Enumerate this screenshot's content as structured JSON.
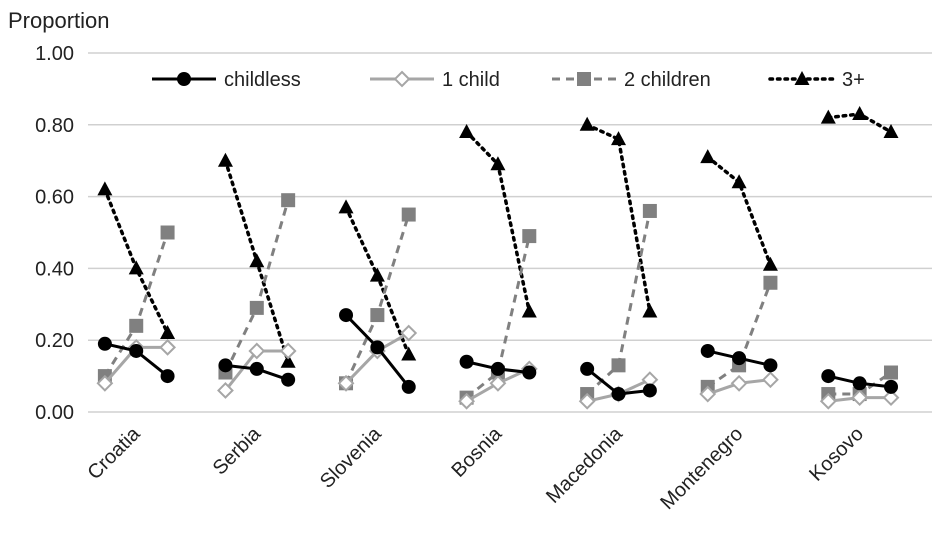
{
  "chart_data": {
    "type": "line",
    "ylabel": "Proportion",
    "ylim": [
      0,
      1
    ],
    "yticks": [
      "0.00",
      "0.20",
      "0.40",
      "0.60",
      "0.80",
      "1.00"
    ],
    "yticks_values": [
      0,
      0.2,
      0.4,
      0.6,
      0.8,
      1.0
    ],
    "grid": true,
    "legend_position": "top",
    "categories": [
      "Croatia",
      "Serbia",
      "Slovenia",
      "Bosnia",
      "Macedonia",
      "Montenegro",
      "Kosovo"
    ],
    "points_per_category": 3,
    "series": [
      {
        "name": "childless",
        "color": "#000000",
        "dash": "solid",
        "marker": "circle-filled",
        "values": [
          [
            0.19,
            0.17,
            0.1
          ],
          [
            0.13,
            0.12,
            0.09
          ],
          [
            0.27,
            0.18,
            0.07
          ],
          [
            0.14,
            0.12,
            0.11
          ],
          [
            0.12,
            0.05,
            0.06
          ],
          [
            0.17,
            0.15,
            0.13
          ],
          [
            0.1,
            0.08,
            0.07
          ]
        ]
      },
      {
        "name": "1 child",
        "color": "#a6a6a6",
        "dash": "solid",
        "marker": "diamond-open",
        "values": [
          [
            0.08,
            0.18,
            0.18
          ],
          [
            0.06,
            0.17,
            0.17
          ],
          [
            0.08,
            0.17,
            0.22
          ],
          [
            0.03,
            0.08,
            0.12
          ],
          [
            0.03,
            0.05,
            0.09
          ],
          [
            0.05,
            0.08,
            0.09
          ],
          [
            0.03,
            0.04,
            0.04
          ]
        ]
      },
      {
        "name": "2 children",
        "color": "#808080",
        "dash": "dashed",
        "marker": "square-filled",
        "values": [
          [
            0.1,
            0.24,
            0.5
          ],
          [
            0.11,
            0.29,
            0.59
          ],
          [
            0.08,
            0.27,
            0.55
          ],
          [
            0.04,
            0.11,
            0.49
          ],
          [
            0.05,
            0.13,
            0.56
          ],
          [
            0.07,
            0.13,
            0.36
          ],
          [
            0.05,
            0.05,
            0.11
          ]
        ]
      },
      {
        "name": "3+",
        "color": "#000000",
        "dash": "dotted",
        "marker": "triangle-filled",
        "values": [
          [
            0.62,
            0.4,
            0.22
          ],
          [
            0.7,
            0.42,
            0.14
          ],
          [
            0.57,
            0.38,
            0.16
          ],
          [
            0.78,
            0.69,
            0.28
          ],
          [
            0.8,
            0.76,
            0.28
          ],
          [
            0.71,
            0.64,
            0.41
          ],
          [
            0.82,
            0.83,
            0.78
          ]
        ]
      }
    ]
  }
}
